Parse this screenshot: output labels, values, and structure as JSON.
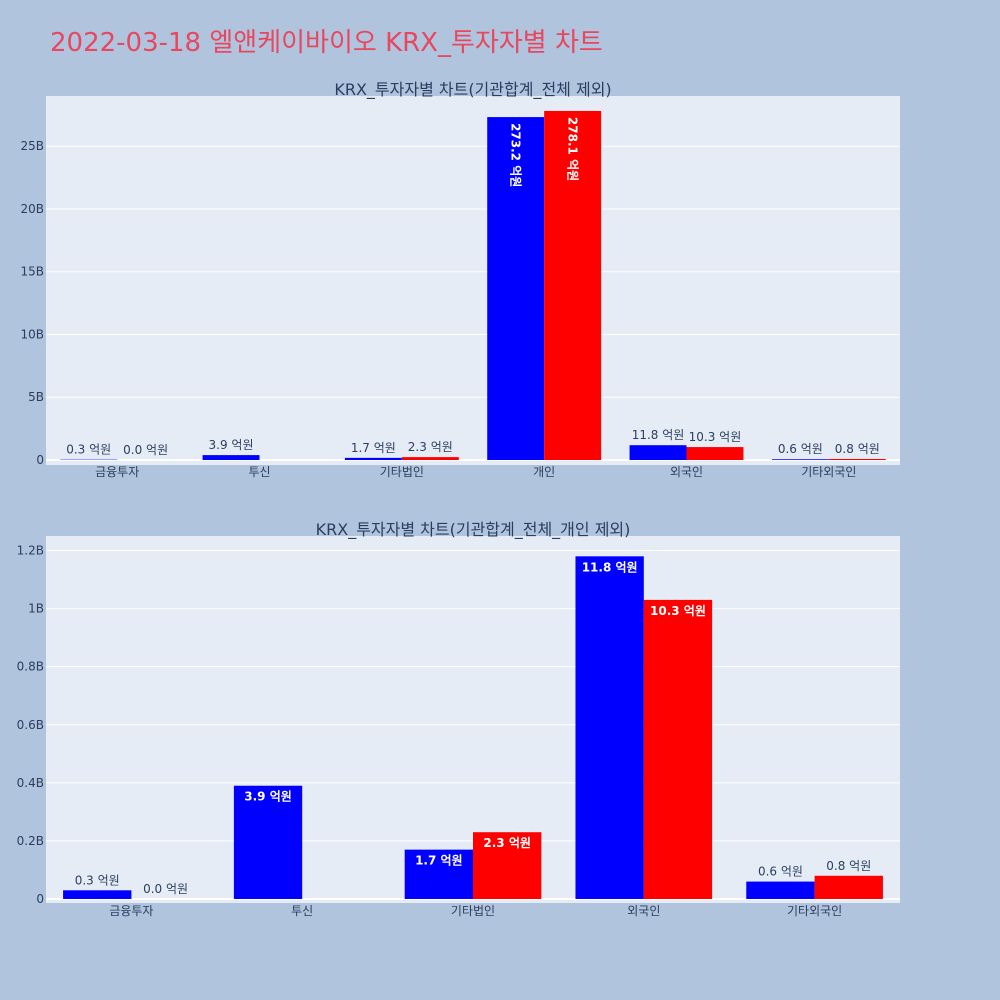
{
  "page": {
    "title": "2022-03-18 엘앤케이바이오 KRX_투자자별 차트"
  },
  "chart_data": [
    {
      "type": "bar",
      "title": "KRX_투자자별 차트(기관합계_전체 제외)",
      "categories": [
        "금융투자",
        "투신",
        "기타법인",
        "개인",
        "외국인",
        "기타외국인"
      ],
      "series": [
        {
          "color": "#0000ff",
          "values": [
            30000000,
            390000000,
            170000000,
            27320000000,
            1180000000,
            60000000
          ],
          "labels": [
            "0.3 억원",
            "3.9 억원",
            "1.7 억원",
            "273.2 억원",
            "11.8 억원",
            "0.6 억원"
          ]
        },
        {
          "color": "#ff0000",
          "values": [
            0,
            null,
            230000000,
            27810000000,
            1030000000,
            80000000
          ],
          "labels": [
            "0.0 억원",
            "",
            "2.3 억원",
            "278.1 억원",
            "10.3 억원",
            "0.8 억원"
          ]
        }
      ],
      "ylim": [
        0,
        29000000000
      ],
      "yticks": [
        0,
        5000000000,
        10000000000,
        15000000000,
        20000000000,
        25000000000
      ],
      "yticklabels": [
        "0",
        "5B",
        "10B",
        "15B",
        "20B",
        "25B"
      ],
      "grid": true
    },
    {
      "type": "bar",
      "title": "KRX_투자자별 차트(기관합계_전체_개인 제외)",
      "categories": [
        "금융투자",
        "투신",
        "기타법인",
        "외국인",
        "기타외국인"
      ],
      "series": [
        {
          "color": "#0000ff",
          "values": [
            30000000,
            390000000,
            170000000,
            1180000000,
            60000000
          ],
          "labels": [
            "0.3 억원",
            "3.9 억원",
            "1.7 억원",
            "11.8 억원",
            "0.6 억원"
          ]
        },
        {
          "color": "#ff0000",
          "values": [
            0,
            null,
            230000000,
            1030000000,
            80000000
          ],
          "labels": [
            "0.0 억원",
            "",
            "2.3 억원",
            "10.3 억원",
            "0.8 억원"
          ]
        }
      ],
      "ylim": [
        0,
        1250000000
      ],
      "yticks": [
        0,
        200000000,
        400000000,
        600000000,
        800000000,
        1000000000,
        1200000000
      ],
      "yticklabels": [
        "0",
        "0.2B",
        "0.4B",
        "0.6B",
        "0.8B",
        "1B",
        "1.2B"
      ],
      "grid": true
    }
  ]
}
